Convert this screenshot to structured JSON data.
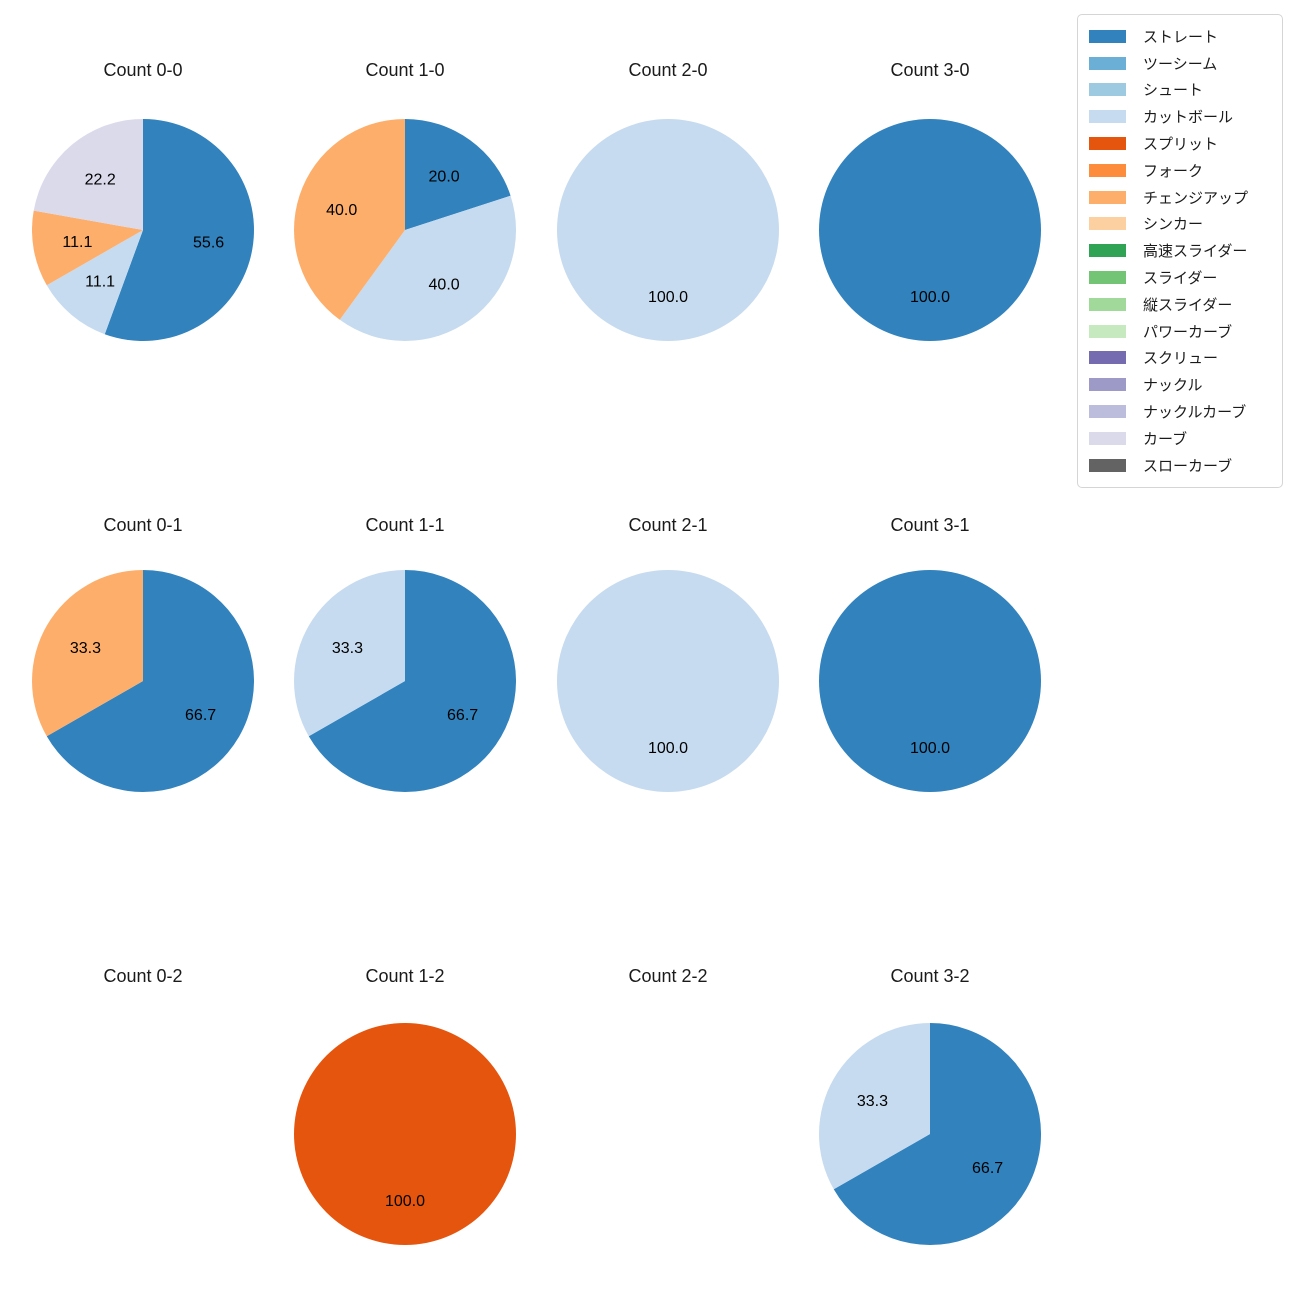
{
  "palette": {
    "ストレート": "#3182bd",
    "ツーシーム": "#6baed6",
    "シュート": "#9ecae1",
    "カットボール": "#c6dbef",
    "スプリット": "#e6550d",
    "フォーク": "#fd8d3c",
    "チェンジアップ": "#fdae6b",
    "シンカー": "#fdd0a2",
    "高速スライダー": "#31a354",
    "スライダー": "#74c476",
    "縦スライダー": "#a1d99b",
    "パワーカーブ": "#c7e9c0",
    "スクリュー": "#756bb1",
    "ナックル": "#9e9ac8",
    "ナックルカーブ": "#bcbddc",
    "カーブ": "#dadaeb",
    "スローカーブ": "#636363"
  },
  "legend": {
    "position": "upper right",
    "labels": [
      "ストレート",
      "ツーシーム",
      "シュート",
      "カットボール",
      "スプリット",
      "フォーク",
      "チェンジアップ",
      "シンカー",
      "高速スライダー",
      "スライダー",
      "縦スライダー",
      "パワーカーブ",
      "スクリュー",
      "ナックル",
      "ナックルカーブ",
      "カーブ",
      "スローカーブ"
    ]
  },
  "chart_data": [
    {
      "type": "pie",
      "title": "Count 0-0",
      "labels": [
        "ストレート",
        "カットボール",
        "チェンジアップ",
        "カーブ"
      ],
      "values": [
        55.6,
        11.1,
        11.1,
        22.2
      ],
      "start_angle": 90,
      "direction": "clockwise",
      "label_format": "one-decimal-percent"
    },
    {
      "type": "pie",
      "title": "Count 1-0",
      "labels": [
        "ストレート",
        "カットボール",
        "チェンジアップ"
      ],
      "values": [
        20.0,
        40.0,
        40.0
      ],
      "start_angle": 90,
      "direction": "clockwise",
      "label_format": "one-decimal-percent"
    },
    {
      "type": "pie",
      "title": "Count 2-0",
      "labels": [
        "カットボール"
      ],
      "values": [
        100.0
      ],
      "start_angle": 90,
      "direction": "clockwise",
      "label_format": "one-decimal-percent"
    },
    {
      "type": "pie",
      "title": "Count 3-0",
      "labels": [
        "ストレート"
      ],
      "values": [
        100.0
      ],
      "start_angle": 90,
      "direction": "clockwise",
      "label_format": "one-decimal-percent"
    },
    {
      "type": "pie",
      "title": "Count 0-1",
      "labels": [
        "ストレート",
        "チェンジアップ"
      ],
      "values": [
        66.7,
        33.3
      ],
      "start_angle": 90,
      "direction": "clockwise",
      "label_format": "one-decimal-percent"
    },
    {
      "type": "pie",
      "title": "Count 1-1",
      "labels": [
        "ストレート",
        "カットボール"
      ],
      "values": [
        66.7,
        33.3
      ],
      "start_angle": 90,
      "direction": "clockwise",
      "label_format": "one-decimal-percent"
    },
    {
      "type": "pie",
      "title": "Count 2-1",
      "labels": [
        "カットボール"
      ],
      "values": [
        100.0
      ],
      "start_angle": 90,
      "direction": "clockwise",
      "label_format": "one-decimal-percent"
    },
    {
      "type": "pie",
      "title": "Count 3-1",
      "labels": [
        "ストレート"
      ],
      "values": [
        100.0
      ],
      "start_angle": 90,
      "direction": "clockwise",
      "label_format": "one-decimal-percent"
    },
    {
      "type": "pie",
      "title": "Count 0-2",
      "labels": [],
      "values": [],
      "start_angle": 90,
      "direction": "clockwise",
      "label_format": "one-decimal-percent"
    },
    {
      "type": "pie",
      "title": "Count 1-2",
      "labels": [
        "スプリット"
      ],
      "values": [
        100.0
      ],
      "start_angle": 90,
      "direction": "clockwise",
      "label_format": "one-decimal-percent"
    },
    {
      "type": "pie",
      "title": "Count 2-2",
      "labels": [],
      "values": [],
      "start_angle": 90,
      "direction": "clockwise",
      "label_format": "one-decimal-percent"
    },
    {
      "type": "pie",
      "title": "Count 3-2",
      "labels": [
        "ストレート",
        "カットボール"
      ],
      "values": [
        66.7,
        33.3
      ],
      "start_angle": 90,
      "direction": "clockwise",
      "label_format": "one-decimal-percent"
    }
  ]
}
